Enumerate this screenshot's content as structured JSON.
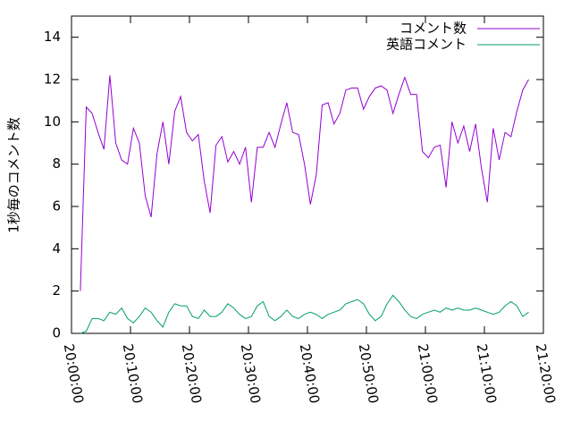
{
  "chart_data": {
    "type": "line",
    "ylabel": "1秒毎のコメント数",
    "x": [
      "20:01:30",
      "20:02:30",
      "20:03:30",
      "20:04:30",
      "20:05:30",
      "20:06:30",
      "20:07:30",
      "20:08:30",
      "20:09:30",
      "20:10:30",
      "20:11:30",
      "20:12:30",
      "20:13:30",
      "20:14:30",
      "20:15:30",
      "20:16:30",
      "20:17:30",
      "20:18:30",
      "20:19:30",
      "20:20:30",
      "20:21:30",
      "20:22:30",
      "20:23:30",
      "20:24:30",
      "20:25:30",
      "20:26:30",
      "20:27:30",
      "20:28:30",
      "20:29:30",
      "20:30:30",
      "20:31:30",
      "20:32:30",
      "20:33:30",
      "20:34:30",
      "20:35:30",
      "20:36:30",
      "20:37:30",
      "20:38:30",
      "20:39:30",
      "20:40:30",
      "20:41:30",
      "20:42:30",
      "20:43:30",
      "20:44:30",
      "20:45:30",
      "20:46:30",
      "20:47:30",
      "20:48:30",
      "20:49:30",
      "20:50:30",
      "20:51:30",
      "20:52:30",
      "20:53:30",
      "20:54:30",
      "20:55:30",
      "20:56:30",
      "20:57:30",
      "20:58:30",
      "20:59:30",
      "21:00:30",
      "21:01:30",
      "21:02:30",
      "21:03:30",
      "21:04:30",
      "21:05:30",
      "21:06:30",
      "21:07:30",
      "21:08:30",
      "21:09:30",
      "21:10:30",
      "21:11:30",
      "21:12:30",
      "21:13:30",
      "21:14:30",
      "21:15:30",
      "21:16:30",
      "21:17:30"
    ],
    "series": [
      {
        "name": "コメント数",
        "color": "#9400d3",
        "values": [
          2.0,
          10.7,
          10.4,
          9.5,
          8.7,
          12.2,
          9.0,
          8.2,
          8.0,
          9.7,
          9.0,
          6.5,
          5.5,
          8.5,
          10.0,
          8.0,
          10.5,
          11.2,
          9.5,
          9.1,
          9.4,
          7.2,
          5.7,
          8.9,
          9.3,
          8.1,
          8.6,
          8.0,
          8.8,
          6.2,
          8.8,
          8.8,
          9.5,
          8.8,
          9.9,
          10.9,
          9.5,
          9.4,
          8.0,
          6.1,
          7.5,
          10.8,
          10.9,
          9.9,
          10.4,
          11.5,
          11.6,
          11.6,
          10.6,
          11.2,
          11.6,
          11.7,
          11.5,
          10.4,
          11.3,
          12.1,
          11.3,
          11.3,
          8.6,
          8.3,
          8.8,
          8.9,
          6.9,
          10.0,
          9.0,
          9.8,
          8.6,
          9.9,
          7.8,
          6.2,
          9.7,
          8.2,
          9.5,
          9.3,
          10.5,
          11.5,
          12.0
        ]
      },
      {
        "name": "英語コメント",
        "color": "#009e73",
        "values": [
          0.0,
          0.1,
          0.7,
          0.7,
          0.6,
          1.0,
          0.9,
          1.2,
          0.7,
          0.5,
          0.8,
          1.2,
          1.0,
          0.6,
          0.3,
          1.0,
          1.4,
          1.3,
          1.3,
          0.8,
          0.7,
          1.1,
          0.8,
          0.8,
          1.0,
          1.4,
          1.2,
          0.9,
          0.7,
          0.8,
          1.3,
          1.5,
          0.8,
          0.6,
          0.8,
          1.1,
          0.8,
          0.7,
          0.9,
          1.0,
          0.9,
          0.7,
          0.9,
          1.0,
          1.1,
          1.4,
          1.5,
          1.6,
          1.4,
          0.9,
          0.6,
          0.8,
          1.4,
          1.8,
          1.5,
          1.1,
          0.8,
          0.7,
          0.9,
          1.0,
          1.1,
          1.0,
          1.2,
          1.1,
          1.2,
          1.1,
          1.1,
          1.2,
          1.1,
          1.0,
          0.9,
          1.0,
          1.3,
          1.5,
          1.3,
          0.8,
          1.0
        ]
      }
    ],
    "xlim": [
      "20:00:00",
      "21:20:00"
    ],
    "xticks": [
      "20:00:00",
      "20:10:00",
      "20:20:00",
      "20:30:00",
      "20:40:00",
      "20:50:00",
      "21:00:00",
      "21:10:00",
      "21:20:00"
    ],
    "ylim": [
      0,
      15
    ],
    "yticks": [
      0,
      2,
      4,
      6,
      8,
      10,
      12,
      14
    ],
    "legend": "top right"
  }
}
